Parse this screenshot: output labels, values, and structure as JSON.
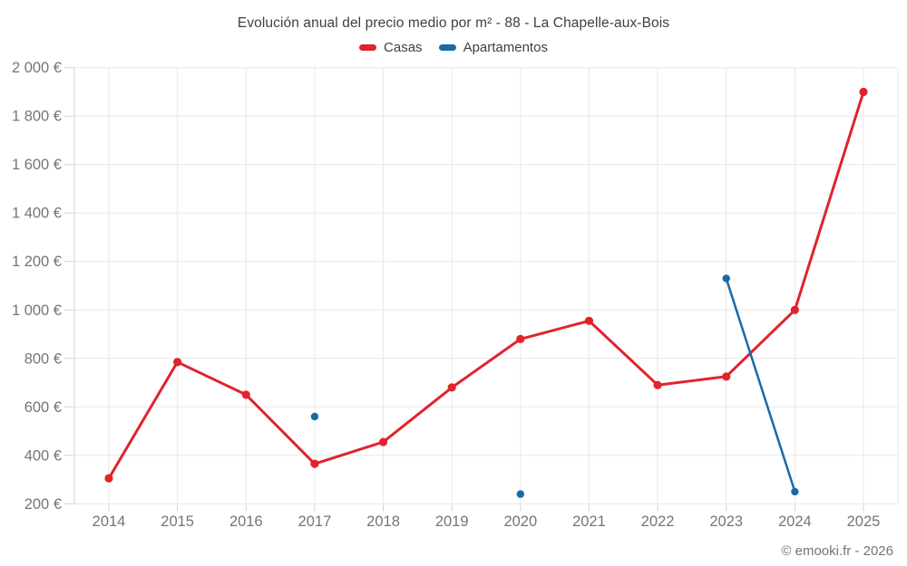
{
  "title": "Evolución anual del precio medio por m² - 88 - La Chapelle-aux-Bois",
  "footer": "© emooki.fr - 2026",
  "chart_data": {
    "type": "line",
    "title": "Evolución anual del precio medio por m² - 88 - La Chapelle-aux-Bois",
    "categories": [
      2014,
      2015,
      2016,
      2017,
      2018,
      2019,
      2020,
      2021,
      2022,
      2023,
      2024,
      2025
    ],
    "series": [
      {
        "name": "Casas",
        "color": "#e0232c",
        "values": [
          305,
          785,
          650,
          365,
          455,
          680,
          880,
          955,
          690,
          725,
          1000,
          1900
        ]
      },
      {
        "name": "Apartamentos",
        "color": "#176ba6",
        "values": [
          null,
          null,
          null,
          560,
          null,
          null,
          240,
          null,
          null,
          1130,
          250,
          null
        ]
      }
    ],
    "xlabel": "",
    "ylabel": "",
    "ylabel_suffix": " €",
    "ylim": [
      200,
      2000
    ],
    "ytick_step": 200,
    "grid": true,
    "legend_position": "top",
    "style": {
      "grid_color": "#e8e8e8",
      "axis_color": "#d2d2d2",
      "tick_label_color": "#757575",
      "title_color": "#3f3f3f"
    }
  }
}
